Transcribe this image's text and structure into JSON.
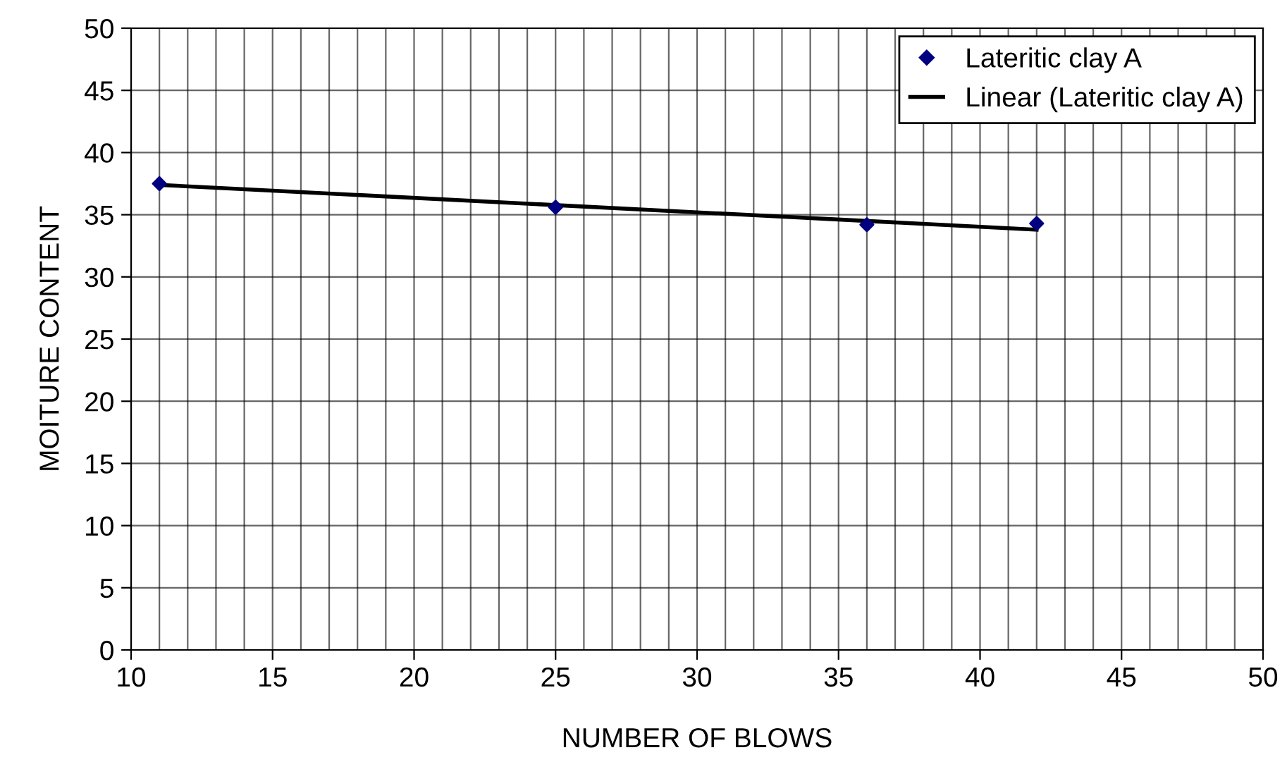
{
  "chart_data": {
    "type": "scatter",
    "xlabel": "NUMBER OF BLOWS",
    "ylabel": "MOITURE CONTENT",
    "xlim": [
      10,
      50
    ],
    "ylim": [
      0,
      50
    ],
    "xticks": [
      10,
      {
        "value": 11,
        "label": null
      },
      {
        "value": 12,
        "label": null
      },
      {
        "value": 13,
        "label": null
      },
      {
        "value": 14,
        "label": null
      },
      15,
      {
        "value": 16,
        "label": null
      },
      {
        "value": 17,
        "label": null
      },
      {
        "value": 18,
        "label": null
      },
      {
        "value": 19,
        "label": null
      },
      20,
      {
        "value": 21,
        "label": null
      },
      {
        "value": 22,
        "label": null
      },
      {
        "value": 23,
        "label": null
      },
      {
        "value": 24,
        "label": null
      },
      25,
      {
        "value": 26,
        "label": null
      },
      {
        "value": 27,
        "label": null
      },
      {
        "value": 28,
        "label": null
      },
      {
        "value": 29,
        "label": null
      },
      30,
      {
        "value": 31,
        "label": null
      },
      {
        "value": 32,
        "label": null
      },
      {
        "value": 33,
        "label": null
      },
      {
        "value": 34,
        "label": null
      },
      35,
      {
        "value": 36,
        "label": null
      },
      {
        "value": 37,
        "label": null
      },
      {
        "value": 38,
        "label": null
      },
      {
        "value": 39,
        "label": null
      },
      40,
      {
        "value": 41,
        "label": null
      },
      {
        "value": 42,
        "label": null
      },
      {
        "value": 43,
        "label": null
      },
      {
        "value": 44,
        "label": null
      },
      45,
      {
        "value": 46,
        "label": null
      },
      {
        "value": 47,
        "label": null
      },
      {
        "value": 48,
        "label": null
      },
      {
        "value": 49,
        "label": null
      },
      50
    ],
    "yticks": [
      0,
      5,
      10,
      15,
      20,
      25,
      30,
      35,
      40,
      45,
      50
    ],
    "grid": true,
    "legend": "top right",
    "series": [
      {
        "name": "Lateritic clay A",
        "marker": "diamond",
        "color": "#000080",
        "x": [
          11,
          25,
          36,
          42
        ],
        "values": [
          37.5,
          35.6,
          34.2,
          34.3
        ]
      },
      {
        "name": "Linear (Lateritic clay A)",
        "type": "line",
        "marker": "none",
        "line_style": "solid",
        "color": "#000000",
        "x": [
          11,
          42
        ],
        "values": [
          37.4,
          33.8
        ]
      }
    ]
  }
}
